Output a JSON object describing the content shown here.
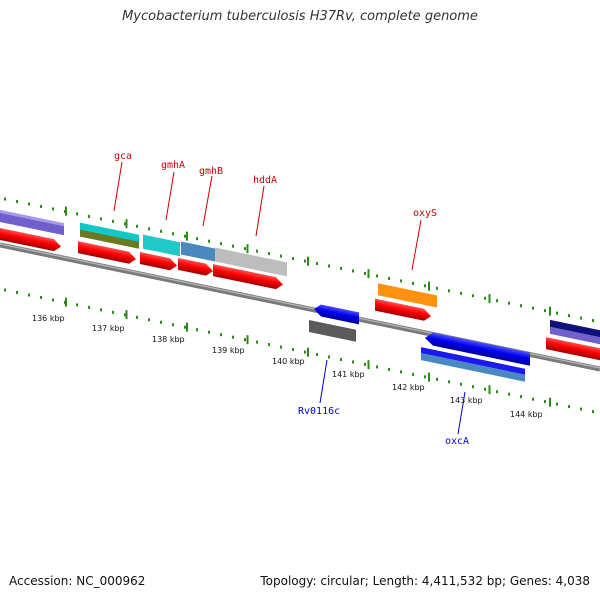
{
  "title": "Mycobacterium tuberculosis H37Rv, complete genome",
  "footer": {
    "accession": "Accession: NC_000962",
    "summary": "Topology: circular; Length: 4,411,532 bp; Genes: 4,038"
  },
  "colors": {
    "backbone": "#8a8a8a",
    "tick": "#2a8a1a",
    "label_top": "#cc0000",
    "label_bottom": "#0000cc",
    "cds": "#ff0000"
  },
  "kbp_labels": [
    "136 kbp",
    "137 kbp",
    "138 kbp",
    "139 kbp",
    "140 kbp",
    "141 kbp",
    "142 kbp",
    "143 kbp",
    "144 kbp"
  ],
  "gene_labels": [
    {
      "name": "gca",
      "color": "#cc0000"
    },
    {
      "name": "gmhA",
      "color": "#cc0000"
    },
    {
      "name": "gmhB",
      "color": "#cc0000"
    },
    {
      "name": "hddA",
      "color": "#cc0000"
    },
    {
      "name": "oxyS",
      "color": "#cc0000"
    },
    {
      "name": "Rv0116c",
      "color": "#0000cc"
    },
    {
      "name": "oxcA",
      "color": "#0000cc"
    }
  ]
}
